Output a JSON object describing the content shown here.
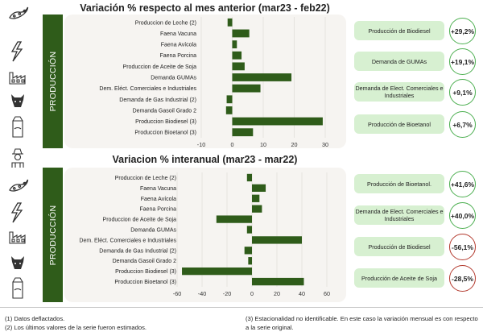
{
  "section_label": "PRODUCCIÓN",
  "charts": [
    {
      "title": "Variación % respecto al mes anterior (mar23 - feb22)",
      "chart_data": {
        "type": "bar",
        "orientation": "horizontal",
        "categories": [
          "Produccion de Leche (2)",
          "Faena Vacuna",
          "Faena Avícola",
          "Faena Porcina",
          "Produccion de Aceite de Soja",
          "Demanda  GUMAs",
          "Dem. Eléct. Comerciales e Industriales",
          "Demanda de Gas Industrial (2)",
          "Demanda Gasoil Grado 2",
          "Produccion Biodiesel (3)",
          "Produccion Bioetanol (3)"
        ],
        "values": [
          -1.5,
          5.5,
          1.5,
          3.0,
          4.0,
          19.1,
          9.1,
          -1.8,
          -2.0,
          29.2,
          6.7
        ],
        "xlim": [
          -10,
          30
        ],
        "xticks": [
          -10,
          0,
          10,
          20,
          30
        ],
        "xtick_labels": [
          "-10",
          "0",
          "10",
          "20",
          "30"
        ]
      },
      "highlights": [
        {
          "label": "Producción de Biodiesel",
          "value": "+29,2%",
          "sign": "pos"
        },
        {
          "label": "Demanda de GUMAs",
          "value": "+19,1%",
          "sign": "pos"
        },
        {
          "label": "Demanda de Elect. Comerciales e Industriales",
          "value": "+9,1%",
          "sign": "pos"
        },
        {
          "label": "Producción de Bioetanol",
          "value": "+6,7%",
          "sign": "pos"
        }
      ]
    },
    {
      "title": "Variacion % interanual (mar23 - mar22)",
      "chart_data": {
        "type": "bar",
        "orientation": "horizontal",
        "categories": [
          "Produccion de Leche (2)",
          "Faena Vacuna",
          "Faena Avícola",
          "Faena Porcina",
          "Produccion de Aceite de Soja",
          "Demanda  GUMAs",
          "Dem. Eléct. Comerciales e Industriales",
          "Demanda de Gas Industrial (2)",
          "Demanda Gasoil Grado 2",
          "Produccion Biodiesel (3)",
          "Produccion Bioetanol (3)"
        ],
        "values": [
          -4,
          11,
          6,
          8,
          -28.5,
          -4,
          40,
          -6,
          -3,
          -56.1,
          41.6
        ],
        "xlim": [
          -60,
          60
        ],
        "xticks": [
          -60,
          -40,
          -20,
          0,
          20,
          40,
          60
        ],
        "xtick_labels": [
          "-60",
          "-40",
          "-20",
          "0",
          "20",
          "40",
          "60"
        ]
      },
      "highlights": [
        {
          "label": "Producción de Bioetanol.",
          "value": "+41,6%",
          "sign": "pos"
        },
        {
          "label": "Demanda de Elect. Comerciales e Industriales",
          "value": "+40,0%",
          "sign": "pos"
        },
        {
          "label": "Producción de Biodiesel",
          "value": "-56,1%",
          "sign": "neg"
        },
        {
          "label": "Producción de Aceite de Soja",
          "value": "-28,5%",
          "sign": "neg"
        }
      ]
    }
  ],
  "notes": {
    "n1": "(1) Datos deflactados.",
    "n2": "(2) Los últimos valores de la serie fueron estimados.",
    "n3": "(3) Estacionalidad no identificable. En este caso la variación mensual es con respecto a la serie original."
  },
  "colors": {
    "bar": "#2f5c1a",
    "card": "#d7f0d1",
    "pos": "#4caf50",
    "neg": "#b33a2e"
  },
  "icons": [
    "soybean-icon",
    "lightning-icon",
    "factory-icon",
    "cow-icon",
    "milk-carton-icon",
    "farmer-icon",
    "soybean-icon",
    "lightning-icon",
    "factory-icon",
    "cow-icon",
    "milk-carton-icon"
  ]
}
